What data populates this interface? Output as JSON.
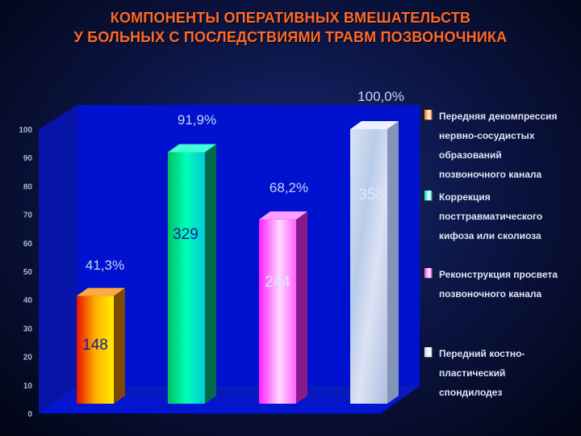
{
  "title": {
    "line1": "КОМПОНЕНТЫ ОПЕРАТИВНЫХ ВМЕШАТЕЛЬСТВ",
    "line2": "У БОЛЬНЫХ С ПОСЛЕДСТВИЯМИ ТРАВМ ПОЗВОНОЧНИКА"
  },
  "chart_data": {
    "type": "bar",
    "ylim": [
      0,
      100
    ],
    "yticks": [
      0,
      10,
      20,
      30,
      40,
      50,
      60,
      70,
      80,
      90,
      100
    ],
    "grid": false,
    "legend_position": "right",
    "series": [
      {
        "name": "Передняя декомпрессия нервно-сосудистых образований позвоночного канала",
        "value": 41.3,
        "percent_label": "41,3%",
        "count_label": "148",
        "color": "#ff7a00"
      },
      {
        "name": "Коррекция посттравматического кифоза или сколиоза",
        "value": 91.9,
        "percent_label": "91,9%",
        "count_label": "329",
        "color": "#00e0c0"
      },
      {
        "name": "Реконструкция просвета позвоночного канала",
        "value": 68.2,
        "percent_label": "68,2%",
        "count_label": "244",
        "color": "#ff40ff"
      },
      {
        "name": "Передний костно-пластический спондилодез",
        "value": 100.0,
        "percent_label": "100,0%",
        "count_label": "358",
        "color": "#c8d8f0"
      }
    ]
  },
  "legend": [
    {
      "lines": [
        "Передняя декомпрессия",
        "нервно-сосудистых",
        "образований",
        "позвоночного канала"
      ],
      "color": "#ff7a00"
    },
    {
      "lines": [
        "Коррекция",
        "посттравматического",
        "кифоза или сколиоза"
      ],
      "color": "#00e0c0"
    },
    {
      "lines": [
        "Реконструкция просвета",
        "позвоночного канала"
      ],
      "color": "#ff40ff"
    },
    {
      "lines": [
        "Передний костно-",
        "пластический",
        "спондилодез"
      ],
      "color": "#c8d8f0"
    }
  ]
}
